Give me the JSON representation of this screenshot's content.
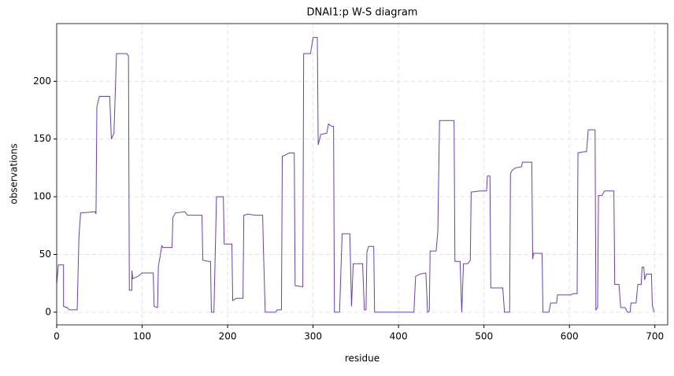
{
  "chart_data": {
    "type": "line",
    "title": "DNAI1:p W-S diagram",
    "x_label": "residue",
    "y_label": "observations",
    "x": [
      0,
      2,
      8,
      8,
      12,
      15,
      24,
      26,
      28,
      45,
      46,
      47,
      50,
      62,
      64,
      67,
      70,
      82,
      84,
      85,
      88,
      88,
      89,
      95,
      100,
      113,
      114,
      118,
      119,
      121,
      123,
      124,
      135,
      136,
      139,
      150,
      153,
      170,
      171,
      178,
      180,
      181,
      184,
      187,
      195,
      196,
      205,
      206,
      210,
      218,
      219,
      224,
      232,
      241,
      242,
      244,
      256,
      258,
      263,
      264,
      270,
      272,
      278,
      279,
      288,
      289,
      297,
      300,
      305,
      306,
      309,
      316,
      318,
      322,
      324,
      325,
      331,
      334,
      343,
      345,
      347,
      358,
      360,
      362,
      363,
      365,
      371,
      372,
      418,
      420,
      425,
      432,
      434,
      436,
      437,
      444,
      446,
      448,
      465,
      466,
      472,
      474,
      476,
      481,
      484,
      485,
      495,
      503,
      504,
      507,
      508,
      522,
      524,
      530,
      531,
      533,
      537,
      544,
      545,
      556,
      557,
      558,
      568,
      569,
      576,
      578,
      585,
      586,
      602,
      604,
      609,
      610,
      617,
      620,
      622,
      630,
      631,
      633,
      634,
      638,
      641,
      652,
      653,
      658,
      660,
      665,
      668,
      671,
      672,
      678,
      680,
      684,
      685,
      687,
      688,
      690,
      696,
      697,
      699
    ],
    "series": [
      {
        "name": "observations",
        "color": "#6a3dc9",
        "values": [
          25,
          41,
          41,
          5,
          4,
          2,
          2,
          65,
          86,
          87,
          85,
          178,
          187,
          187,
          150,
          155,
          224,
          224,
          222,
          19,
          19,
          36,
          29,
          31,
          34,
          34,
          5,
          4,
          40,
          48,
          58,
          56,
          56,
          82,
          86,
          87,
          84,
          84,
          45,
          44,
          44,
          0,
          0,
          100,
          100,
          59,
          59,
          10,
          12,
          12,
          84,
          85,
          84,
          84,
          53,
          0,
          0,
          2,
          2,
          135,
          137,
          138,
          138,
          23,
          22,
          224,
          224,
          238,
          238,
          145,
          154,
          155,
          163,
          161,
          161,
          0,
          0,
          68,
          68,
          5,
          42,
          42,
          2,
          2,
          52,
          57,
          57,
          0,
          0,
          31,
          33,
          34,
          0,
          1,
          53,
          53,
          70,
          166,
          166,
          44,
          44,
          0,
          42,
          42,
          45,
          104,
          105,
          105,
          118,
          118,
          21,
          21,
          0,
          0,
          120,
          123,
          125,
          126,
          130,
          130,
          46,
          51,
          51,
          0,
          0,
          8,
          8,
          15,
          15,
          16,
          16,
          138,
          139,
          139,
          158,
          158,
          2,
          4,
          101,
          101,
          105,
          105,
          24,
          24,
          4,
          4,
          0,
          0,
          8,
          8,
          24,
          24,
          39,
          39,
          28,
          33,
          33,
          6,
          0
        ]
      }
    ],
    "xlim": [
      0,
      715
    ],
    "ylim": [
      -11,
      250
    ],
    "xticks": [
      0,
      100,
      200,
      300,
      400,
      500,
      600,
      700
    ],
    "yticks": [
      0,
      50,
      100,
      150,
      200
    ],
    "grid": true
  }
}
